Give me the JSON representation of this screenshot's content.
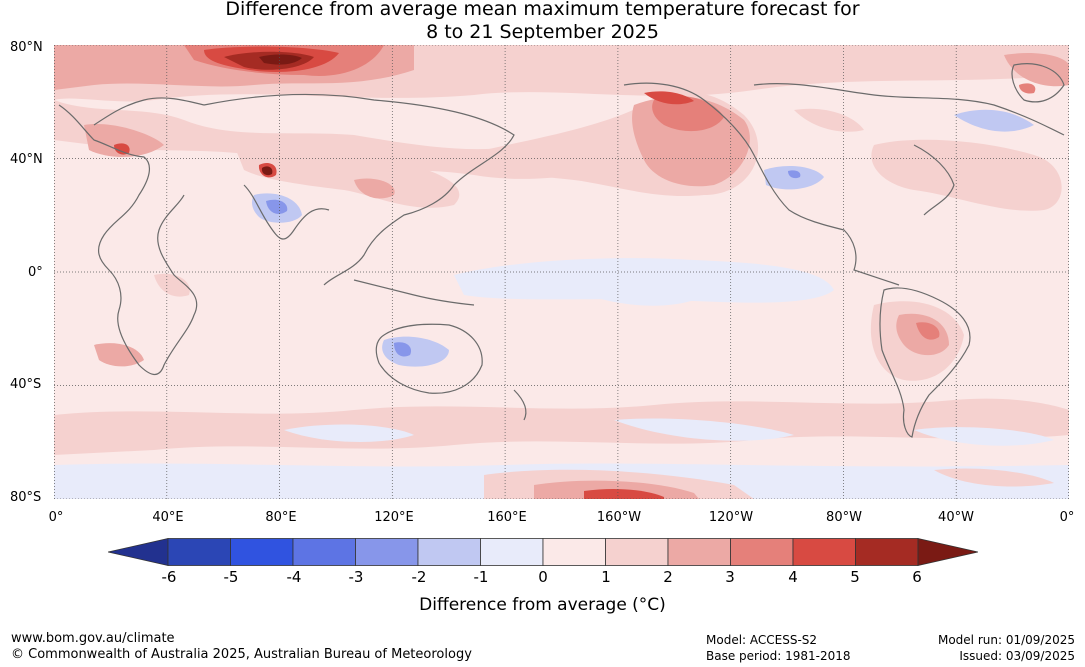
{
  "title": {
    "line1": "Difference from average mean maximum temperature forecast for",
    "line2": "8 to 21 September 2025"
  },
  "map": {
    "lat_labels": [
      "80°N",
      "40°N",
      "0°",
      "40°S",
      "80°S"
    ],
    "lon_labels": [
      "0°",
      "40°E",
      "80°E",
      "120°E",
      "160°E",
      "160°W",
      "120°W",
      "80°W",
      "40°W",
      "0°"
    ],
    "grid": true,
    "projection": "equirectangular, 0° to 360°"
  },
  "colorbar": {
    "ticks": [
      "-6",
      "-5",
      "-4",
      "-3",
      "-2",
      "-1",
      "0",
      "1",
      "2",
      "3",
      "4",
      "5",
      "6"
    ],
    "colors": [
      "#22318f",
      "#2b46b5",
      "#3053e0",
      "#5d74e4",
      "#8796ea",
      "#c0c8f2",
      "#e8ebfa",
      "#fbe9e8",
      "#f5d1cf",
      "#eca9a5",
      "#e5807a",
      "#d84a42",
      "#a52b23",
      "#7a1a14"
    ],
    "label": "Difference from average (°C)"
  },
  "footer": {
    "url": "www.bom.gov.au/climate",
    "copyright": "© Commonwealth of Australia 2025, Australian Bureau of Meteorology",
    "model": "Model: ACCESS-S2",
    "base_period": "Base period: 1981-2018",
    "model_run": "Model run: 01/09/2025",
    "issued": "Issued: 03/09/2025"
  }
}
